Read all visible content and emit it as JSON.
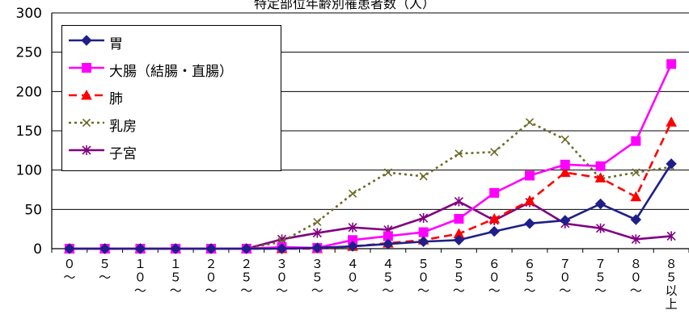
{
  "chart_data": {
    "type": "line",
    "title": "特定部位年齢別罹患者数（人）",
    "ylim": [
      0,
      300
    ],
    "yticks": [
      0,
      50,
      100,
      150,
      200,
      250,
      300
    ],
    "grid": true,
    "legend_position": "top-left",
    "categories": [
      [
        "０",
        "～"
      ],
      [
        "５",
        "～"
      ],
      [
        "１",
        "０",
        "～"
      ],
      [
        "１",
        "５",
        "～"
      ],
      [
        "２",
        "０",
        "～"
      ],
      [
        "２",
        "５",
        "～"
      ],
      [
        "３",
        "０",
        "～"
      ],
      [
        "３",
        "５",
        "～"
      ],
      [
        "４",
        "０",
        "～"
      ],
      [
        "４",
        "５",
        "～"
      ],
      [
        "５",
        "０",
        "～"
      ],
      [
        "５",
        "５",
        "～"
      ],
      [
        "６",
        "０",
        "～"
      ],
      [
        "６",
        "５",
        "～"
      ],
      [
        "７",
        "０",
        "～"
      ],
      [
        "７",
        "５",
        "～"
      ],
      [
        "８",
        "０",
        "～"
      ],
      [
        "８",
        "５",
        "以",
        "上"
      ]
    ],
    "series": [
      {
        "name": "胃",
        "color": "#1f1f8a",
        "dash": "",
        "marker": "diamond",
        "values": [
          0,
          0,
          0,
          0,
          0,
          0,
          0,
          1,
          3,
          6,
          9,
          11,
          22,
          32,
          36,
          57,
          37,
          108
        ]
      },
      {
        "name": "大腸（結腸・直腸）",
        "color": "#ff00ff",
        "dash": "",
        "marker": "square",
        "values": [
          0,
          0,
          0,
          0,
          0,
          0,
          2,
          1,
          11,
          16,
          21,
          38,
          71,
          93,
          107,
          105,
          137,
          235
        ]
      },
      {
        "name": "肺",
        "color": "#ff0000",
        "dash": "10,6",
        "marker": "triangle",
        "values": [
          0,
          0,
          0,
          0,
          0,
          0,
          0,
          0,
          3,
          7,
          11,
          19,
          38,
          61,
          97,
          90,
          66,
          161
        ]
      },
      {
        "name": "乳房",
        "color": "#6b6b2a",
        "dash": "3,4",
        "marker": "x",
        "values": [
          0,
          0,
          0,
          0,
          0,
          0,
          9,
          34,
          70,
          97,
          92,
          121,
          123,
          161,
          139,
          89,
          97,
          104
        ]
      },
      {
        "name": "子宮",
        "color": "#800080",
        "dash": "",
        "marker": "star",
        "values": [
          0,
          0,
          0,
          0,
          0,
          0,
          12,
          20,
          27,
          24,
          39,
          60,
          36,
          59,
          32,
          26,
          12,
          16
        ]
      }
    ]
  }
}
